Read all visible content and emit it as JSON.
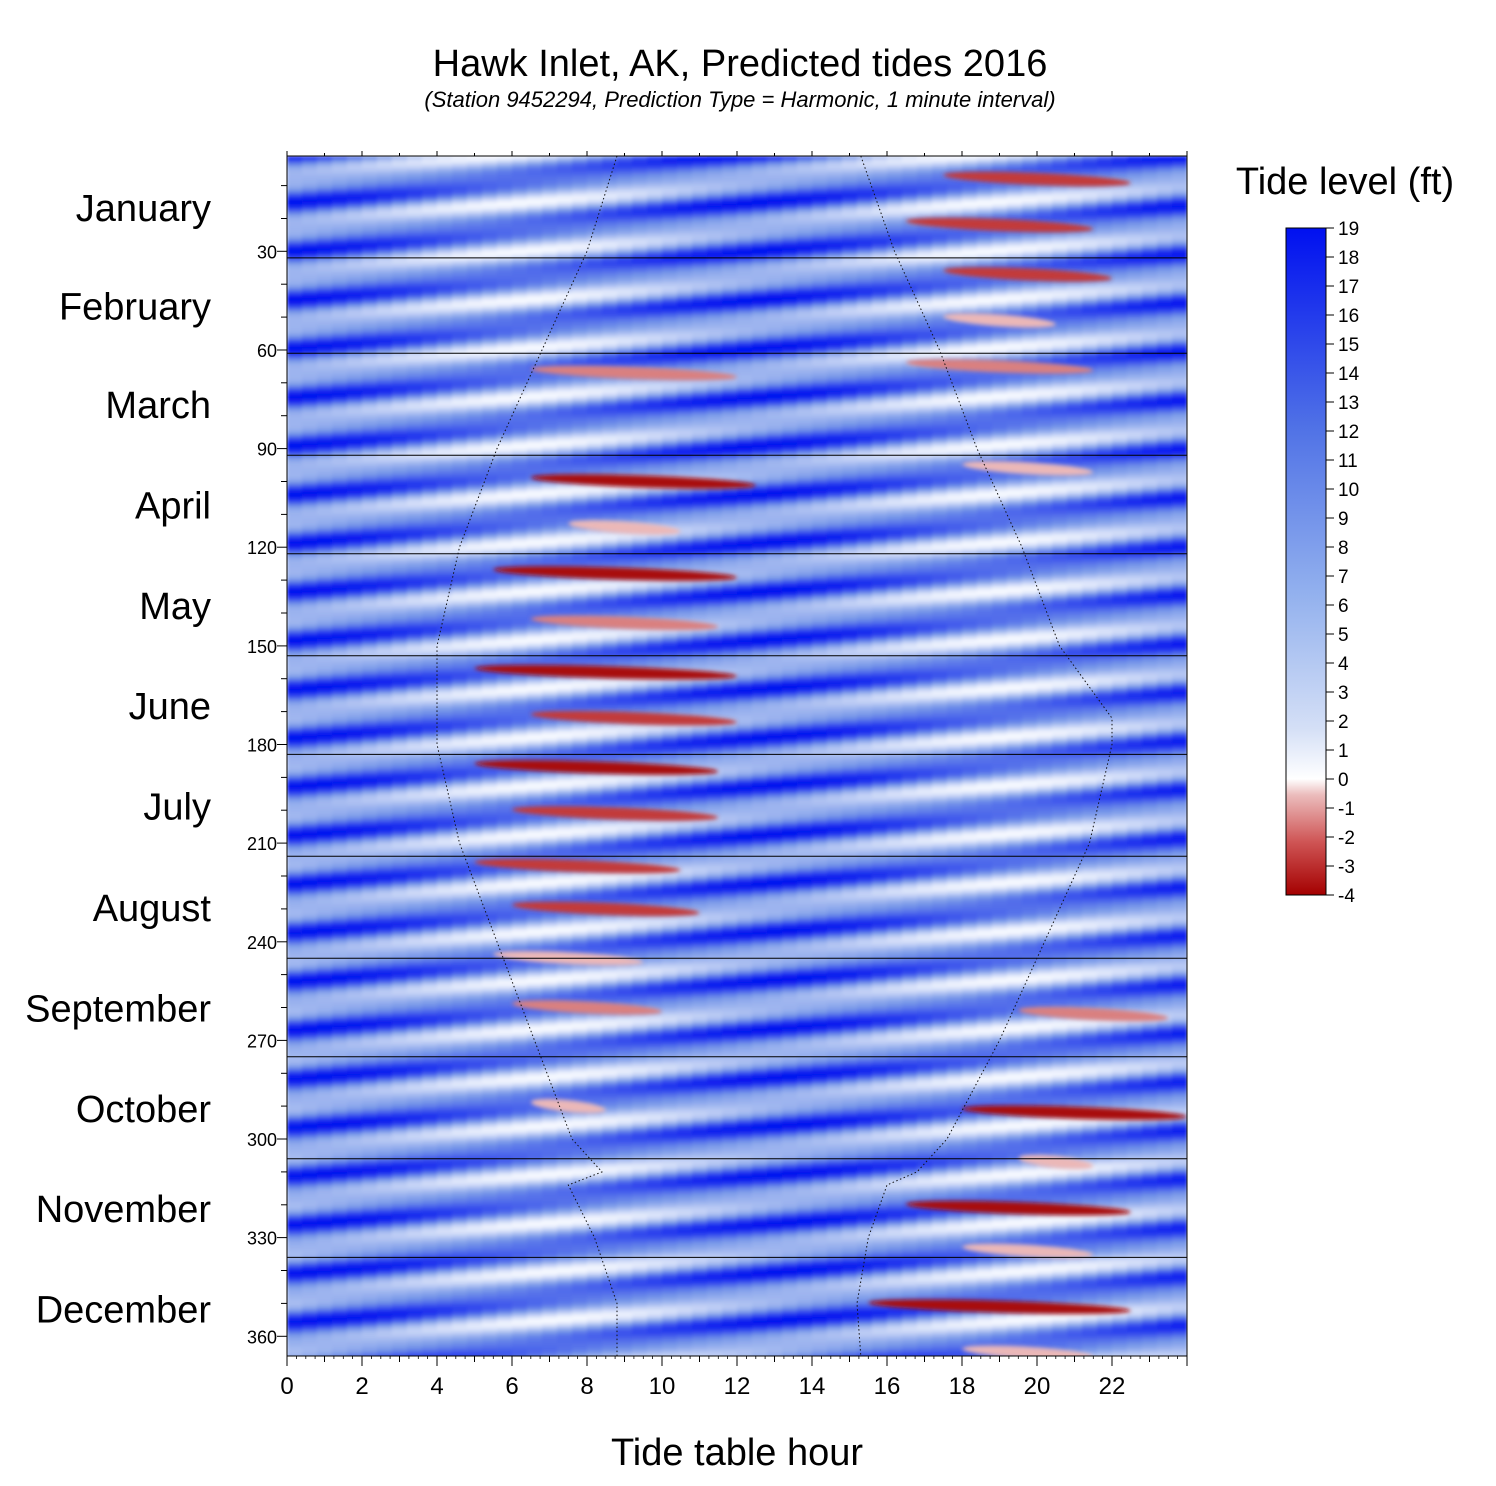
{
  "chart_data": {
    "type": "heatmap",
    "title": "Hawk Inlet, AK, Predicted tides 2016",
    "subtitle": "(Station 9452294, Prediction Type = Harmonic, 1 minute interval)",
    "xlabel": "Tide table hour",
    "xlim": [
      0,
      24
    ],
    "x_ticks": [
      0,
      2,
      4,
      6,
      8,
      10,
      12,
      14,
      16,
      18,
      20,
      22
    ],
    "ylim": [
      1,
      366
    ],
    "y_ticks": [
      30,
      60,
      90,
      120,
      150,
      180,
      210,
      240,
      270,
      300,
      330,
      360
    ],
    "months": [
      {
        "name": "January",
        "start_day": 1
      },
      {
        "name": "February",
        "start_day": 32
      },
      {
        "name": "March",
        "start_day": 61
      },
      {
        "name": "April",
        "start_day": 92
      },
      {
        "name": "May",
        "start_day": 122
      },
      {
        "name": "June",
        "start_day": 153
      },
      {
        "name": "July",
        "start_day": 183
      },
      {
        "name": "August",
        "start_day": 214
      },
      {
        "name": "September",
        "start_day": 245
      },
      {
        "name": "October",
        "start_day": 275
      },
      {
        "name": "November",
        "start_day": 306
      },
      {
        "name": "December",
        "start_day": 336
      }
    ],
    "colorbar": {
      "label": "Tide level (ft)",
      "min": -4,
      "max": 19,
      "ticks": [
        19,
        18,
        17,
        16,
        15,
        14,
        13,
        12,
        11,
        10,
        9,
        8,
        7,
        6,
        5,
        4,
        3,
        2,
        1,
        0,
        -1,
        -2,
        -3,
        -4
      ],
      "colors": {
        "high": "#0010f0",
        "mid_high": "#6f95e6",
        "zero": "#ffffff",
        "low": "#a40000"
      }
    },
    "negative_tide_bands": [
      {
        "day": 8,
        "x_start": 17.5,
        "x_end": 22.5,
        "min_level": -2
      },
      {
        "day": 22,
        "x_start": 16.5,
        "x_end": 21.5,
        "min_level": -2
      },
      {
        "day": 37,
        "x_start": 17.5,
        "x_end": 22.0,
        "min_level": -2
      },
      {
        "day": 51,
        "x_start": 17.5,
        "x_end": 20.5,
        "min_level": -1
      },
      {
        "day": 65,
        "x_start": 16.5,
        "x_end": 21.5,
        "min_level": -1.5
      },
      {
        "day": 67,
        "x_start": 6.5,
        "x_end": 12.0,
        "min_level": -1.5
      },
      {
        "day": 96,
        "x_start": 18.0,
        "x_end": 21.5,
        "min_level": -1
      },
      {
        "day": 100,
        "x_start": 6.5,
        "x_end": 12.5,
        "min_level": -3
      },
      {
        "day": 114,
        "x_start": 7.5,
        "x_end": 10.5,
        "min_level": -1
      },
      {
        "day": 128,
        "x_start": 5.5,
        "x_end": 12.0,
        "min_level": -3.5
      },
      {
        "day": 143,
        "x_start": 6.5,
        "x_end": 11.5,
        "min_level": -1.5
      },
      {
        "day": 158,
        "x_start": 5.0,
        "x_end": 12.0,
        "min_level": -4
      },
      {
        "day": 172,
        "x_start": 6.5,
        "x_end": 12.0,
        "min_level": -2
      },
      {
        "day": 187,
        "x_start": 5.0,
        "x_end": 11.5,
        "min_level": -3
      },
      {
        "day": 201,
        "x_start": 6.0,
        "x_end": 11.5,
        "min_level": -2
      },
      {
        "day": 217,
        "x_start": 5.0,
        "x_end": 10.5,
        "min_level": -2
      },
      {
        "day": 230,
        "x_start": 6.0,
        "x_end": 11.0,
        "min_level": -2
      },
      {
        "day": 245,
        "x_start": 5.5,
        "x_end": 9.5,
        "min_level": -1
      },
      {
        "day": 260,
        "x_start": 6.0,
        "x_end": 10.0,
        "min_level": -1.5
      },
      {
        "day": 262,
        "x_start": 19.5,
        "x_end": 23.5,
        "min_level": -1.5
      },
      {
        "day": 290,
        "x_start": 6.5,
        "x_end": 8.5,
        "min_level": -0.5
      },
      {
        "day": 292,
        "x_start": 18.0,
        "x_end": 24.0,
        "min_level": -3
      },
      {
        "day": 307,
        "x_start": 19.5,
        "x_end": 21.5,
        "min_level": -0.5
      },
      {
        "day": 321,
        "x_start": 16.5,
        "x_end": 22.5,
        "min_level": -3.5
      },
      {
        "day": 334,
        "x_start": 18.0,
        "x_end": 21.5,
        "min_level": -1
      },
      {
        "day": 351,
        "x_start": 15.5,
        "x_end": 22.5,
        "min_level": -3.5
      },
      {
        "day": 365,
        "x_start": 18.0,
        "x_end": 21.5,
        "min_level": -1
      }
    ],
    "daylight_curves": {
      "sunrise": [
        [
          1,
          8.8
        ],
        [
          30,
          8.0
        ],
        [
          60,
          6.8
        ],
        [
          90,
          5.6
        ],
        [
          120,
          4.6
        ],
        [
          150,
          4.0
        ],
        [
          172,
          4.0
        ],
        [
          180,
          4.0
        ],
        [
          210,
          4.6
        ],
        [
          240,
          5.6
        ],
        [
          270,
          6.6
        ],
        [
          300,
          7.6
        ],
        [
          310,
          8.4
        ],
        [
          314,
          7.5
        ],
        [
          330,
          8.2
        ],
        [
          350,
          8.8
        ],
        [
          366,
          8.8
        ]
      ],
      "sunset": [
        [
          1,
          15.3
        ],
        [
          30,
          16.2
        ],
        [
          60,
          17.4
        ],
        [
          90,
          18.4
        ],
        [
          120,
          19.6
        ],
        [
          150,
          20.6
        ],
        [
          172,
          22.0
        ],
        [
          180,
          22.0
        ],
        [
          210,
          21.4
        ],
        [
          240,
          20.2
        ],
        [
          270,
          19.0
        ],
        [
          300,
          17.6
        ],
        [
          310,
          16.8
        ],
        [
          314,
          16.0
        ],
        [
          330,
          15.5
        ],
        [
          350,
          15.2
        ],
        [
          366,
          15.3
        ]
      ]
    }
  }
}
